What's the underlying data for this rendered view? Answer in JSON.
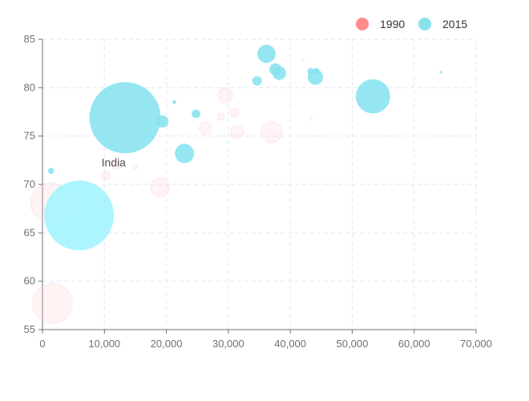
{
  "chart_data": {
    "type": "scatter",
    "subtype": "bubble",
    "title": "",
    "xlabel": "",
    "ylabel": "",
    "xlim": [
      0,
      70000
    ],
    "ylim": [
      55,
      85
    ],
    "x_ticks": [
      0,
      10000,
      20000,
      30000,
      40000,
      50000,
      60000,
      70000
    ],
    "x_tick_labels": [
      "0",
      "10,000",
      "20,000",
      "30,000",
      "40,000",
      "50,000",
      "60,000",
      "70,000"
    ],
    "y_ticks": [
      55,
      60,
      65,
      70,
      75,
      80,
      85
    ],
    "y_tick_labels": [
      "55",
      "60",
      "65",
      "70",
      "75",
      "80",
      "85"
    ],
    "grid": true,
    "legend_position": "top-right",
    "series": [
      {
        "name": "1990",
        "color": "#ff8b8b",
        "style": "faint",
        "points": [
          {
            "x": 1600,
            "y": 57.7,
            "size": 4.3
          },
          {
            "x": 1300,
            "y": 68.1,
            "size": 4.3
          },
          {
            "x": 19000,
            "y": 69.7,
            "size": 1.0
          },
          {
            "x": 37000,
            "y": 75.4,
            "size": 1.2
          },
          {
            "x": 29500,
            "y": 79.2,
            "size": 0.6
          },
          {
            "x": 31400,
            "y": 75.4,
            "size": 0.45
          },
          {
            "x": 26300,
            "y": 75.8,
            "size": 0.4
          },
          {
            "x": 12000,
            "y": 72.1,
            "size": 0.3
          },
          {
            "x": 10200,
            "y": 70.9,
            "size": 0.2
          },
          {
            "x": 31000,
            "y": 77.4,
            "size": 0.2
          },
          {
            "x": 28800,
            "y": 77.0,
            "size": 0.15
          },
          {
            "x": 43300,
            "y": 76.8,
            "size": 0.02
          },
          {
            "x": 42100,
            "y": 82.8,
            "size": 0.02
          },
          {
            "x": 15000,
            "y": 71.8,
            "size": 0.05
          }
        ]
      },
      {
        "name": "2015",
        "color": "#86e3ee",
        "style": "solid",
        "points": [
          {
            "x": 13334,
            "y": 76.9,
            "size": 13.7,
            "color": "#86e3ee"
          },
          {
            "x": 5903,
            "y": 66.8,
            "size": 13.1,
            "color": "#a2f4fd",
            "label": "India"
          },
          {
            "x": 53354,
            "y": 79.1,
            "size": 3.2,
            "color": "#86e3ee"
          },
          {
            "x": 22921,
            "y": 73.2,
            "size": 1.0,
            "color": "#86e3ee"
          },
          {
            "x": 36162,
            "y": 83.5,
            "size": 0.9,
            "color": "#86e3ee"
          },
          {
            "x": 44053,
            "y": 81.1,
            "size": 0.65,
            "color": "#86e3ee"
          },
          {
            "x": 38225,
            "y": 81.5,
            "size": 0.5,
            "color": "#86e3ee"
          },
          {
            "x": 19360,
            "y": 76.5,
            "size": 0.4,
            "color": "#86e3ee"
          },
          {
            "x": 37599,
            "y": 81.9,
            "size": 0.4,
            "color": "#86e3ee"
          },
          {
            "x": 34644,
            "y": 80.7,
            "size": 0.25,
            "color": "#86e3ee"
          },
          {
            "x": 24787,
            "y": 77.3,
            "size": 0.2,
            "color": "#86e3ee"
          },
          {
            "x": 43296,
            "y": 81.7,
            "size": 0.12,
            "color": "#86e3ee"
          },
          {
            "x": 44200,
            "y": 81.7,
            "size": 0.12,
            "color": "#86e3ee"
          },
          {
            "x": 1390,
            "y": 71.4,
            "size": 0.1,
            "color": "#86e3ee"
          },
          {
            "x": 21291,
            "y": 78.5,
            "size": 0.04,
            "color": "#86e3ee"
          },
          {
            "x": 64304,
            "y": 81.6,
            "size": 0.02,
            "color": "#86e3ee"
          }
        ]
      }
    ]
  }
}
